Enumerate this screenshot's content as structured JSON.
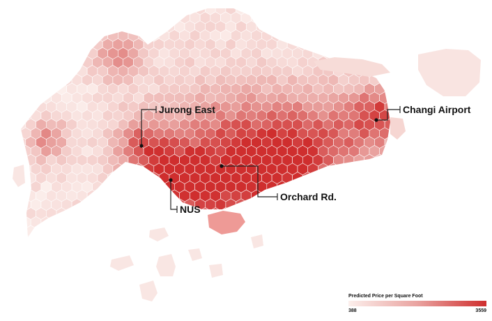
{
  "map": {
    "colors": {
      "low": "#fcefec",
      "mid": "#e9a3a0",
      "high": "#cf2e2e",
      "hex_stroke": "#ffffff",
      "callout": "#222222",
      "marker": "#111111"
    },
    "callouts": [
      {
        "id": "jurong-east",
        "label": "Jurong East"
      },
      {
        "id": "nus",
        "label": "NUS"
      },
      {
        "id": "orchard",
        "label": "Orchard Rd."
      },
      {
        "id": "changi",
        "label": "Changi Airport"
      }
    ]
  },
  "legend": {
    "title": "Predicted Price per Square Foot",
    "min": "388",
    "max": "3559"
  }
}
